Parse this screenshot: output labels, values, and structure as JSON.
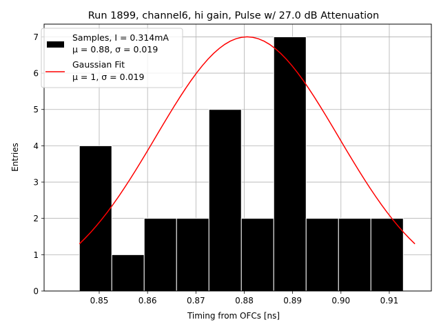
{
  "chart_data": {
    "type": "bar",
    "title": "Run 1899, channel6, hi gain, Pulse w/ 27.0 dB Attenuation",
    "xlabel": "Timing from OFCs [ns]",
    "ylabel": "Entries",
    "xlim": [
      0.8386,
      0.9187
    ],
    "ylim": [
      0,
      7.35
    ],
    "xticks": [
      "0.85",
      "0.86",
      "0.87",
      "0.88",
      "0.89",
      "0.90",
      "0.91"
    ],
    "xtick_values": [
      0.85,
      0.86,
      0.87,
      0.88,
      0.89,
      0.9,
      0.91
    ],
    "yticks": [
      "0",
      "1",
      "2",
      "3",
      "4",
      "5",
      "6",
      "7"
    ],
    "ytick_values": [
      0,
      1,
      2,
      3,
      4,
      5,
      6,
      7
    ],
    "grid": true,
    "legend_position": "upper-left",
    "histogram": {
      "name": "Samples, I = 0.314mA",
      "stats": "μ = 0.88, σ = 0.019",
      "bin_edges": [
        0.8459,
        0.8526,
        0.8593,
        0.866,
        0.8727,
        0.8794,
        0.8861,
        0.8928,
        0.8995,
        0.9062,
        0.9129
      ],
      "counts": [
        4,
        1,
        2,
        2,
        5,
        2,
        7,
        2,
        2,
        2
      ],
      "color": "#000000"
    },
    "fit": {
      "name": "Gaussian Fit",
      "stats": "μ = 1, σ = 0.019",
      "amplitude": 7.0,
      "mean": 0.8806,
      "sigma": 0.0189,
      "x_range": [
        0.8459,
        0.9153
      ],
      "color": "#ff0000"
    }
  }
}
